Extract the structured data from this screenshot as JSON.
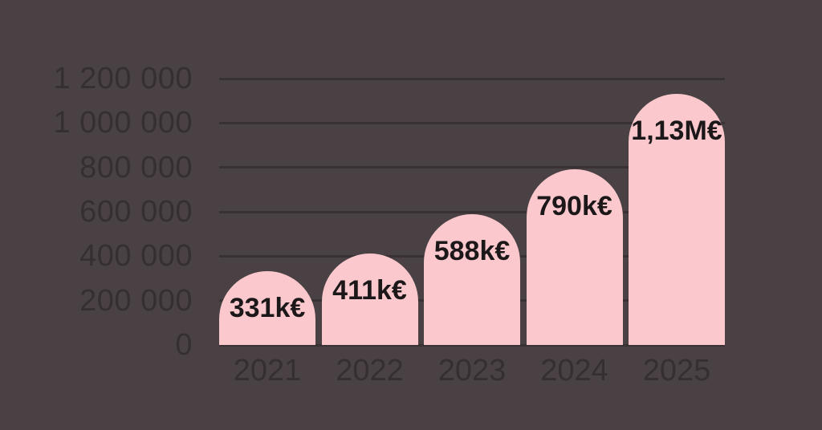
{
  "chart_data": {
    "type": "bar",
    "title": "",
    "xlabel": "",
    "ylabel": "",
    "categories": [
      "2021",
      "2022",
      "2023",
      "2024",
      "2025"
    ],
    "values": [
      331000,
      411000,
      588000,
      790000,
      1130000
    ],
    "value_labels": [
      "331k€",
      "411k€",
      "588k€",
      "790k€",
      "1,13M€"
    ],
    "y_ticks": [
      1200000,
      1000000,
      800000,
      600000,
      400000,
      200000,
      0
    ],
    "y_tick_labels": [
      "1 200 000",
      "1 000 000",
      "800 000",
      "600 000",
      "400 000",
      "200 000",
      "0"
    ],
    "ylim": [
      0,
      1200000
    ],
    "grid": true,
    "legend": false,
    "bar_shape": "rounded-top-dome",
    "colors": {
      "background": "#4a4144",
      "bar_fill": "#fbc9cd",
      "gridline": "#393234",
      "axis_text": "#352f31",
      "value_text": "#1c181a"
    }
  }
}
